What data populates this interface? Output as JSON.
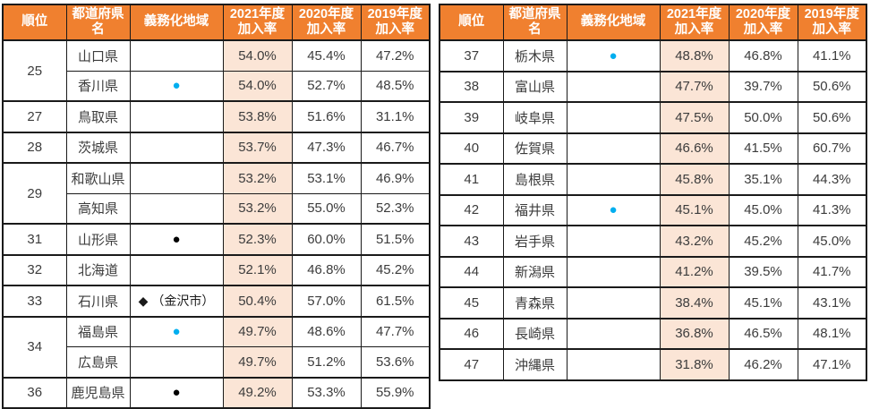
{
  "colors": {
    "header_bg": "#F0802F",
    "header_text": "#FFFFFF",
    "highlight_bg": "#FBE5D6",
    "border": "#1A1A1A",
    "text": "#3C3C3C",
    "blue_marker": "#00AEEF",
    "black_marker": "#000000"
  },
  "markers": {
    "blue": {
      "glyph": "●",
      "style": "dot blue"
    },
    "black": {
      "glyph": "●",
      "style": "dot black"
    },
    "kanazawa": {
      "glyph": "◆ （金沢市）",
      "style": "diamond"
    }
  },
  "headers": [
    {
      "key": "rank",
      "label": "順位"
    },
    {
      "key": "prefecture",
      "label": "都道府県名"
    },
    {
      "key": "mandatory-area",
      "label": "義務化地域"
    },
    {
      "key": "rate-2021",
      "label": "2021年度\n加入率"
    },
    {
      "key": "rate-2020",
      "label": "2020年度\n加入率"
    },
    {
      "key": "rate-2019",
      "label": "2019年度\n加入率"
    }
  ],
  "tables": [
    {
      "name": "left",
      "rows": [
        {
          "rank": "25",
          "rank_span": 2,
          "prefecture": "山口県",
          "marker": "",
          "r2021": "54.0%",
          "r2020": "45.4%",
          "r2019": "47.2%"
        },
        {
          "rank": "",
          "prefecture": "香川県",
          "marker": "blue",
          "r2021": "54.0%",
          "r2020": "52.7%",
          "r2019": "48.5%"
        },
        {
          "rank": "27",
          "rank_span": 1,
          "prefecture": "鳥取県",
          "marker": "",
          "r2021": "53.8%",
          "r2020": "51.6%",
          "r2019": "31.1%"
        },
        {
          "rank": "28",
          "rank_span": 1,
          "prefecture": "茨城県",
          "marker": "",
          "r2021": "53.7%",
          "r2020": "47.3%",
          "r2019": "46.7%"
        },
        {
          "rank": "29",
          "rank_span": 2,
          "prefecture": "和歌山県",
          "marker": "",
          "r2021": "53.2%",
          "r2020": "53.1%",
          "r2019": "46.9%"
        },
        {
          "rank": "",
          "prefecture": "高知県",
          "marker": "",
          "r2021": "53.2%",
          "r2020": "55.0%",
          "r2019": "52.3%"
        },
        {
          "rank": "31",
          "rank_span": 1,
          "prefecture": "山形県",
          "marker": "black",
          "r2021": "52.3%",
          "r2020": "60.0%",
          "r2019": "51.5%"
        },
        {
          "rank": "32",
          "rank_span": 1,
          "prefecture": "北海道",
          "marker": "",
          "r2021": "52.1%",
          "r2020": "46.8%",
          "r2019": "45.2%"
        },
        {
          "rank": "33",
          "rank_span": 1,
          "prefecture": "石川県",
          "marker": "kanazawa",
          "r2021": "50.4%",
          "r2020": "57.0%",
          "r2019": "61.5%"
        },
        {
          "rank": "34",
          "rank_span": 2,
          "prefecture": "福島県",
          "marker": "blue",
          "r2021": "49.7%",
          "r2020": "48.6%",
          "r2019": "47.7%"
        },
        {
          "rank": "",
          "prefecture": "広島県",
          "marker": "",
          "r2021": "49.7%",
          "r2020": "51.2%",
          "r2019": "53.6%"
        },
        {
          "rank": "36",
          "rank_span": 1,
          "prefecture": "鹿児島県",
          "marker": "black",
          "r2021": "49.2%",
          "r2020": "53.3%",
          "r2019": "55.9%"
        }
      ]
    },
    {
      "name": "right",
      "rows": [
        {
          "rank": "37",
          "rank_span": 1,
          "prefecture": "栃木県",
          "marker": "blue",
          "r2021": "48.8%",
          "r2020": "46.8%",
          "r2019": "41.1%"
        },
        {
          "rank": "38",
          "rank_span": 1,
          "prefecture": "富山県",
          "marker": "",
          "r2021": "47.7%",
          "r2020": "39.7%",
          "r2019": "50.6%"
        },
        {
          "rank": "39",
          "rank_span": 1,
          "prefecture": "岐阜県",
          "marker": "",
          "r2021": "47.5%",
          "r2020": "50.0%",
          "r2019": "50.6%"
        },
        {
          "rank": "40",
          "rank_span": 1,
          "prefecture": "佐賀県",
          "marker": "",
          "r2021": "46.6%",
          "r2020": "41.5%",
          "r2019": "60.7%"
        },
        {
          "rank": "41",
          "rank_span": 1,
          "prefecture": "島根県",
          "marker": "",
          "r2021": "45.8%",
          "r2020": "35.1%",
          "r2019": "44.3%"
        },
        {
          "rank": "42",
          "rank_span": 1,
          "prefecture": "福井県",
          "marker": "blue",
          "r2021": "45.1%",
          "r2020": "45.0%",
          "r2019": "41.3%"
        },
        {
          "rank": "43",
          "rank_span": 1,
          "prefecture": "岩手県",
          "marker": "",
          "r2021": "43.2%",
          "r2020": "45.2%",
          "r2019": "45.0%"
        },
        {
          "rank": "44",
          "rank_span": 1,
          "prefecture": "新潟県",
          "marker": "",
          "r2021": "41.2%",
          "r2020": "39.5%",
          "r2019": "41.7%"
        },
        {
          "rank": "45",
          "rank_span": 1,
          "prefecture": "青森県",
          "marker": "",
          "r2021": "38.4%",
          "r2020": "45.1%",
          "r2019": "43.1%"
        },
        {
          "rank": "46",
          "rank_span": 1,
          "prefecture": "長崎県",
          "marker": "",
          "r2021": "36.8%",
          "r2020": "46.5%",
          "r2019": "48.1%"
        },
        {
          "rank": "47",
          "rank_span": 1,
          "prefecture": "沖縄県",
          "marker": "",
          "r2021": "31.8%",
          "r2020": "46.2%",
          "r2019": "47.1%"
        }
      ]
    }
  ]
}
